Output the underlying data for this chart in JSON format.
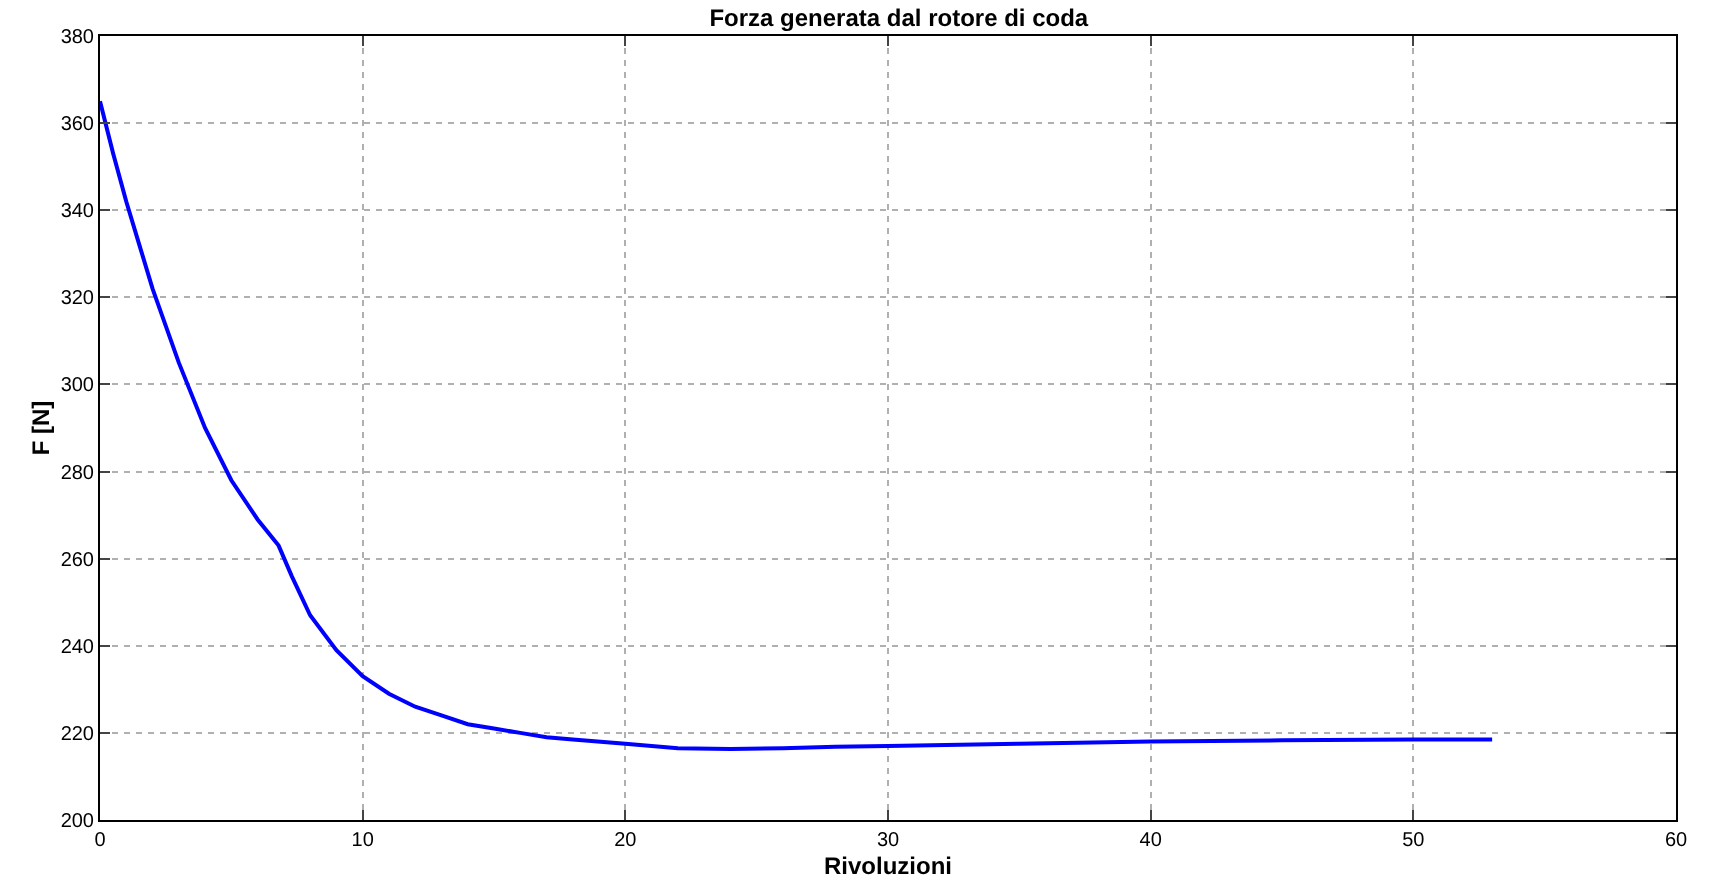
{
  "chart_data": {
    "type": "line",
    "title": "Forza generata dal rotore di coda",
    "xlabel": "Rivoluzioni",
    "ylabel": "F [N]",
    "x": [
      0,
      0.5,
      1,
      1.5,
      2,
      3,
      4,
      5,
      6,
      6.8,
      7.3,
      8,
      9,
      10,
      11,
      12,
      13,
      14,
      15,
      16,
      17,
      18,
      20,
      22,
      24,
      26,
      28,
      30,
      35,
      40,
      45,
      50,
      53
    ],
    "series": [
      {
        "color": "#0000ff",
        "values": [
          365,
          353,
          342,
          332,
          322,
          305,
          290,
          278,
          269,
          263,
          256,
          247,
          239,
          233,
          229,
          226,
          224,
          222,
          221,
          220,
          219,
          218.5,
          217.5,
          216.5,
          216.3,
          216.5,
          216.8,
          217,
          217.5,
          218,
          218.3,
          218.5,
          218.5
        ]
      }
    ],
    "xlim": [
      0,
      60
    ],
    "xticks": [
      0,
      10,
      20,
      30,
      40,
      50,
      60
    ],
    "ylim": [
      200,
      380
    ],
    "yticks": [
      200,
      220,
      240,
      260,
      280,
      300,
      320,
      340,
      360,
      380
    ],
    "grid": true,
    "legend": false,
    "marker": "none",
    "line_style": "solid"
  }
}
